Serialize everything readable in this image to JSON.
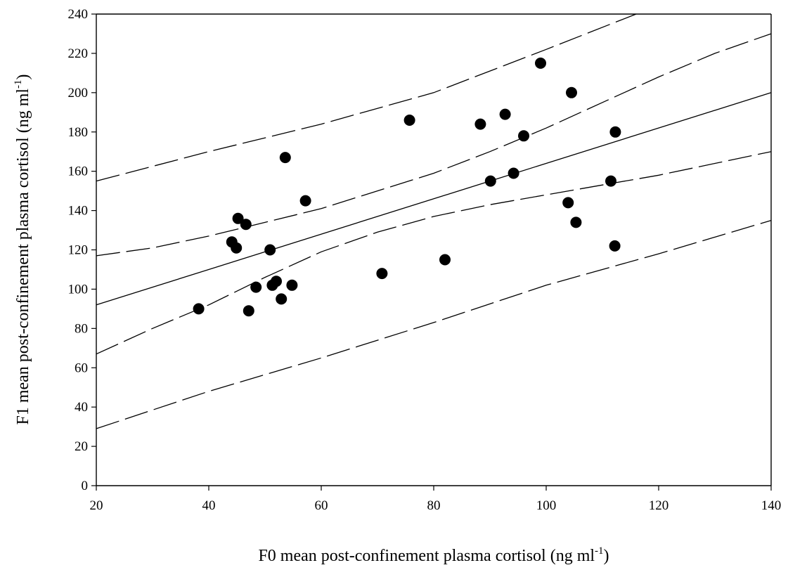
{
  "chart_data": {
    "type": "scatter",
    "title": "",
    "xlabel": {
      "main": "F0 mean post-confinement plasma cortisol (ng ml",
      "sup": "-1",
      "close": ")"
    },
    "ylabel": {
      "main": "F1 mean post-confinement plasma cortisol (ng ml",
      "sup": "-1",
      "close": ")"
    },
    "xlim": [
      20,
      140
    ],
    "ylim": [
      0,
      240
    ],
    "xticks": [
      20,
      40,
      60,
      80,
      100,
      120,
      140
    ],
    "yticks": [
      0,
      20,
      40,
      60,
      80,
      100,
      120,
      140,
      160,
      180,
      200,
      220,
      240
    ],
    "grid": false,
    "legend": "none",
    "points": [
      {
        "x": 38.2,
        "y": 90
      },
      {
        "x": 44.1,
        "y": 124
      },
      {
        "x": 44.9,
        "y": 121
      },
      {
        "x": 45.2,
        "y": 136
      },
      {
        "x": 46.6,
        "y": 133
      },
      {
        "x": 47.1,
        "y": 89
      },
      {
        "x": 48.4,
        "y": 101
      },
      {
        "x": 50.9,
        "y": 120
      },
      {
        "x": 51.3,
        "y": 102
      },
      {
        "x": 52.0,
        "y": 104
      },
      {
        "x": 52.9,
        "y": 95
      },
      {
        "x": 53.6,
        "y": 167
      },
      {
        "x": 54.8,
        "y": 102
      },
      {
        "x": 57.2,
        "y": 145
      },
      {
        "x": 70.8,
        "y": 108
      },
      {
        "x": 75.7,
        "y": 186
      },
      {
        "x": 82.0,
        "y": 115
      },
      {
        "x": 88.3,
        "y": 184
      },
      {
        "x": 90.1,
        "y": 155
      },
      {
        "x": 92.7,
        "y": 189
      },
      {
        "x": 94.2,
        "y": 159
      },
      {
        "x": 96.0,
        "y": 178
      },
      {
        "x": 99.0,
        "y": 215
      },
      {
        "x": 103.9,
        "y": 144
      },
      {
        "x": 104.5,
        "y": 200
      },
      {
        "x": 105.3,
        "y": 134
      },
      {
        "x": 111.5,
        "y": 155
      },
      {
        "x": 112.3,
        "y": 180
      },
      {
        "x": 112.2,
        "y": 122
      }
    ],
    "regression_line": {
      "x": [
        20,
        140
      ],
      "y": [
        92,
        200
      ]
    },
    "confidence_band_upper": {
      "x": [
        20,
        30,
        40,
        50,
        60,
        70,
        80,
        90,
        100,
        110,
        120,
        130,
        140
      ],
      "y": [
        117,
        121,
        127,
        134,
        141,
        150,
        159,
        170,
        182,
        195,
        208,
        220,
        230
      ]
    },
    "confidence_band_lower": {
      "x": [
        20,
        30,
        40,
        50,
        60,
        70,
        80,
        90,
        100,
        110,
        120,
        130,
        140
      ],
      "y": [
        67,
        80,
        92,
        106,
        119,
        129,
        137,
        143,
        148,
        153,
        158,
        164,
        170
      ]
    },
    "prediction_band_upper": {
      "x": [
        20,
        40,
        60,
        80,
        100,
        116
      ],
      "y": [
        155,
        170,
        184,
        200,
        222,
        240
      ]
    },
    "prediction_band_lower": {
      "x": [
        20,
        40,
        60,
        80,
        100,
        120,
        140
      ],
      "y": [
        29,
        48,
        65,
        83,
        102,
        118,
        135
      ]
    }
  }
}
